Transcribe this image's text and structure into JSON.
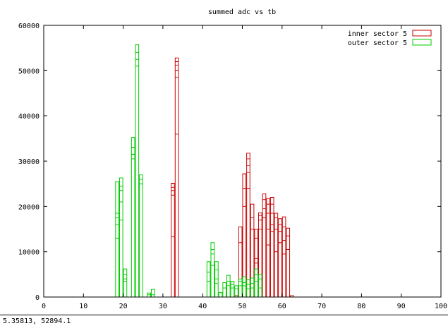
{
  "window": {
    "status_readout": "5.35813,  52894.1"
  },
  "chart_data": {
    "type": "bar",
    "title": "summed adc vs tb",
    "xlabel": "",
    "ylabel": "",
    "xlim": [
      0,
      100
    ],
    "ylim": [
      0,
      60000
    ],
    "xticks": [
      0,
      10,
      20,
      30,
      40,
      50,
      60,
      70,
      80,
      90,
      100
    ],
    "yticks": [
      0,
      10000,
      20000,
      30000,
      40000,
      50000,
      60000
    ],
    "legend_position": "top-right",
    "series": [
      {
        "name": "inner sector 5",
        "color": "#cc0000",
        "bars": [
          {
            "x": 32,
            "values": [
              13300,
              22500,
              23500,
              24200,
              25100
            ]
          },
          {
            "x": 33,
            "values": [
              36000,
              48500,
              50000,
              51200,
              52000,
              52800
            ]
          },
          {
            "x": 48,
            "values": [
              300
            ]
          },
          {
            "x": 49,
            "values": [
              12000,
              15500
            ]
          },
          {
            "x": 50,
            "values": [
              20000,
              24000,
              27200
            ]
          },
          {
            "x": 51,
            "values": [
              24000,
              27500,
              29000,
              30500,
              31800
            ]
          },
          {
            "x": 52,
            "values": [
              15000,
              17500,
              20500
            ]
          },
          {
            "x": 53,
            "values": [
              7500,
              8500,
              13000,
              15000
            ]
          },
          {
            "x": 54,
            "values": [
              15000,
              17000,
              18000,
              18600
            ]
          },
          {
            "x": 55,
            "values": [
              17500,
              19500,
              21500,
              22800
            ]
          },
          {
            "x": 56,
            "values": [
              11500,
              15000,
              18500,
              20500,
              21800
            ]
          },
          {
            "x": 57,
            "values": [
              14500,
              16000,
              18500,
              20500,
              22000
            ]
          },
          {
            "x": 58,
            "values": [
              10000,
              15000,
              17500,
              18500
            ]
          },
          {
            "x": 59,
            "values": [
              12000,
              14500,
              16000,
              17300
            ]
          },
          {
            "x": 60,
            "values": [
              9500,
              12500,
              15500,
              17700
            ]
          },
          {
            "x": 61,
            "values": [
              10500,
              13500,
              15200
            ]
          },
          {
            "x": 62,
            "values": [
              300
            ]
          }
        ]
      },
      {
        "name": "outer sector 5",
        "color": "#00cc00",
        "bars": [
          {
            "x": 18,
            "values": [
              13000,
              16000,
              17500,
              18500,
              25500
            ]
          },
          {
            "x": 19,
            "values": [
              17000,
              21000,
              23500,
              24500,
              26300
            ]
          },
          {
            "x": 20,
            "values": [
              3500,
              4000,
              5000,
              6200
            ]
          },
          {
            "x": 22,
            "values": [
              30500,
              31500,
              33000,
              35200
            ]
          },
          {
            "x": 23,
            "values": [
              51000,
              52500,
              54000,
              55700
            ]
          },
          {
            "x": 24,
            "values": [
              25000,
              26000,
              27000
            ]
          },
          {
            "x": 26,
            "values": [
              500,
              900
            ]
          },
          {
            "x": 27,
            "values": [
              500,
              1700
            ]
          },
          {
            "x": 41,
            "values": [
              3500,
              5500,
              7800
            ]
          },
          {
            "x": 42,
            "values": [
              7000,
              9500,
              10500,
              12000
            ]
          },
          {
            "x": 43,
            "values": [
              3000,
              4000,
              6000,
              7800
            ]
          },
          {
            "x": 44,
            "values": [
              1000
            ]
          },
          {
            "x": 45,
            "values": [
              2000,
              3200
            ]
          },
          {
            "x": 46,
            "values": [
              2500,
              3500,
              4800
            ]
          },
          {
            "x": 47,
            "values": [
              2000,
              2800,
              3500
            ]
          },
          {
            "x": 48,
            "values": [
              1800,
              2500
            ]
          },
          {
            "x": 49,
            "values": [
              2500,
              3500,
              4000
            ]
          },
          {
            "x": 50,
            "values": [
              2500,
              3200,
              4500
            ]
          },
          {
            "x": 51,
            "values": [
              1800,
              2800,
              3800
            ]
          },
          {
            "x": 52,
            "values": [
              2000,
              3000,
              4200
            ]
          },
          {
            "x": 53,
            "values": [
              3500,
              5000,
              6200
            ]
          },
          {
            "x": 54,
            "values": [
              2000,
              4000,
              5000
            ]
          }
        ]
      }
    ]
  }
}
